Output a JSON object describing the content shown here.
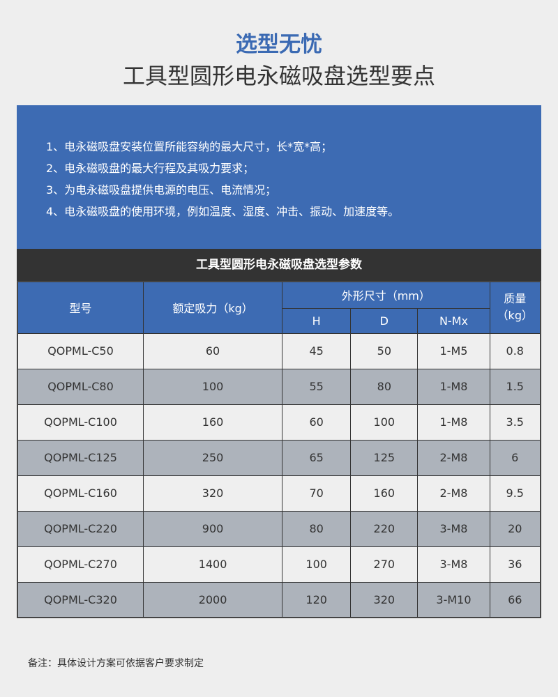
{
  "title": "选型无忧",
  "subtitle": "工具型圆形电永磁吸盘选型要点",
  "points": [
    "1、电永磁吸盘安装位置所能容纳的最大尺寸，长*宽*高；",
    "2、电永磁吸盘的最大行程及其吸力要求；",
    "3、为电永磁吸盘提供电源的电压、电流情况；",
    "4、电永磁吸盘的使用环境，例如温度、湿度、冲击、振动、加速度等。"
  ],
  "table": {
    "title": "工具型圆形电永磁吸盘选型参数",
    "headers": {
      "model": "型号",
      "force": "额定吸力（kg）",
      "dims": "外形尺寸（mm）",
      "h": "H",
      "d": "D",
      "nmx": "N-Mx",
      "mass": "质量（kg）"
    },
    "rows": [
      [
        "QOPML-C50",
        "60",
        "45",
        "50",
        "1-M5",
        "0.8"
      ],
      [
        "QOPML-C80",
        "100",
        "55",
        "80",
        "1-M8",
        "1.5"
      ],
      [
        "QOPML-C100",
        "160",
        "60",
        "100",
        "1-M8",
        "3.5"
      ],
      [
        "QOPML-C125",
        "250",
        "65",
        "125",
        "2-M8",
        "6"
      ],
      [
        "QOPML-C160",
        "320",
        "70",
        "160",
        "2-M8",
        "9.5"
      ],
      [
        "QOPML-C220",
        "900",
        "80",
        "220",
        "3-M8",
        "20"
      ],
      [
        "QOPML-C270",
        "1400",
        "100",
        "270",
        "3-M8",
        "36"
      ],
      [
        "QOPML-C320",
        "2000",
        "120",
        "320",
        "3-M10",
        "66"
      ]
    ]
  },
  "note": "备注：具体设计方案可依据客户要求制定",
  "colors": {
    "accent": "#3d6bb3",
    "title_bar": "#333333",
    "row_alt": "#adb3bb"
  }
}
